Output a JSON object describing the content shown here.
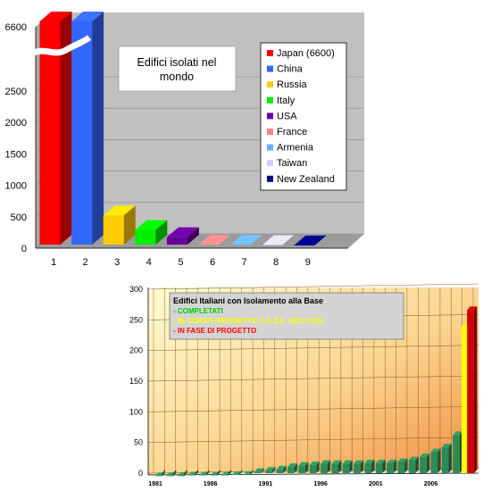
{
  "chart_data": [
    {
      "type": "bar",
      "title": "Edifici isolati nel mondo",
      "title_lines": [
        "Edifici isolati nel",
        "mondo"
      ],
      "categories": [
        "1",
        "2",
        "3",
        "4",
        "5",
        "6",
        "7",
        "8",
        "9"
      ],
      "values": [
        6600,
        2540,
        520,
        290,
        175,
        55,
        55,
        50,
        45
      ],
      "y_ticks": [
        "0",
        "500",
        "1000",
        "1500",
        "2000",
        "2500"
      ],
      "y_break_label": "6600",
      "ylim": [
        0,
        2500
      ],
      "axis_break": true,
      "legend_position": "top-right",
      "legend": [
        {
          "label": "Japan (6600)",
          "color": "#ff0000"
        },
        {
          "label": "China",
          "color": "#3366ff"
        },
        {
          "label": "Russia",
          "color": "#ffcc00"
        },
        {
          "label": "Italy",
          "color": "#00ee00"
        },
        {
          "label": "USA",
          "color": "#660099"
        },
        {
          "label": "France",
          "color": "#ff8080"
        },
        {
          "label": "Armenia",
          "color": "#66aaff"
        },
        {
          "label": "Taiwan",
          "color": "#ccccff"
        },
        {
          "label": "New Zealand",
          "color": "#000080"
        }
      ],
      "background": "#c0c0c0"
    },
    {
      "type": "bar",
      "title": "Edifici Italiani con Isolamento alla Base",
      "legend_lines": [
        {
          "label": "- COMPLETATI",
          "color": "#00cc00"
        },
        {
          "label": "- IN CORSO (PROGETTO C.A.S.E. INCLUSO)",
          "color": "#ffff00"
        },
        {
          "label": "- IN FASE DI PROGETTO",
          "color": "#ff0000"
        }
      ],
      "legend_position": "top-left",
      "y_ticks": [
        "0",
        "50",
        "100",
        "150",
        "200",
        "250",
        "300"
      ],
      "ylim": [
        0,
        300
      ],
      "x_tick_labels": [
        "1981",
        "1986",
        "1991",
        "1996",
        "2001",
        "2006"
      ],
      "x": [
        1981,
        1982,
        1983,
        1984,
        1985,
        1986,
        1987,
        1988,
        1989,
        1990,
        1991,
        1992,
        1993,
        1994,
        1995,
        1996,
        1997,
        1998,
        1999,
        2000,
        2001,
        2002,
        2003,
        2004,
        2005,
        2006,
        2007,
        2008,
        2009
      ],
      "series": [
        {
          "values": [
            1,
            1,
            1,
            2,
            2,
            2,
            2,
            3,
            3,
            8,
            10,
            12,
            16,
            18,
            19,
            21,
            21,
            21,
            21,
            22,
            22,
            22,
            24,
            27,
            32,
            40,
            48,
            68,
            null
          ],
          "color": "#2e8b57"
        },
        {
          "values": [
            null,
            null,
            null,
            null,
            null,
            null,
            null,
            null,
            null,
            null,
            null,
            null,
            null,
            null,
            null,
            null,
            null,
            null,
            null,
            null,
            null,
            null,
            null,
            null,
            null,
            null,
            null,
            null,
            245
          ],
          "color": "#ffff00"
        },
        {
          "values": [
            null,
            null,
            null,
            null,
            null,
            null,
            null,
            null,
            null,
            null,
            null,
            null,
            null,
            null,
            null,
            null,
            null,
            null,
            null,
            null,
            null,
            null,
            null,
            null,
            null,
            null,
            null,
            null,
            272
          ],
          "color": "#cc0000"
        }
      ],
      "background_gradient": [
        "#fffcd0",
        "#f39a4c"
      ]
    }
  ]
}
